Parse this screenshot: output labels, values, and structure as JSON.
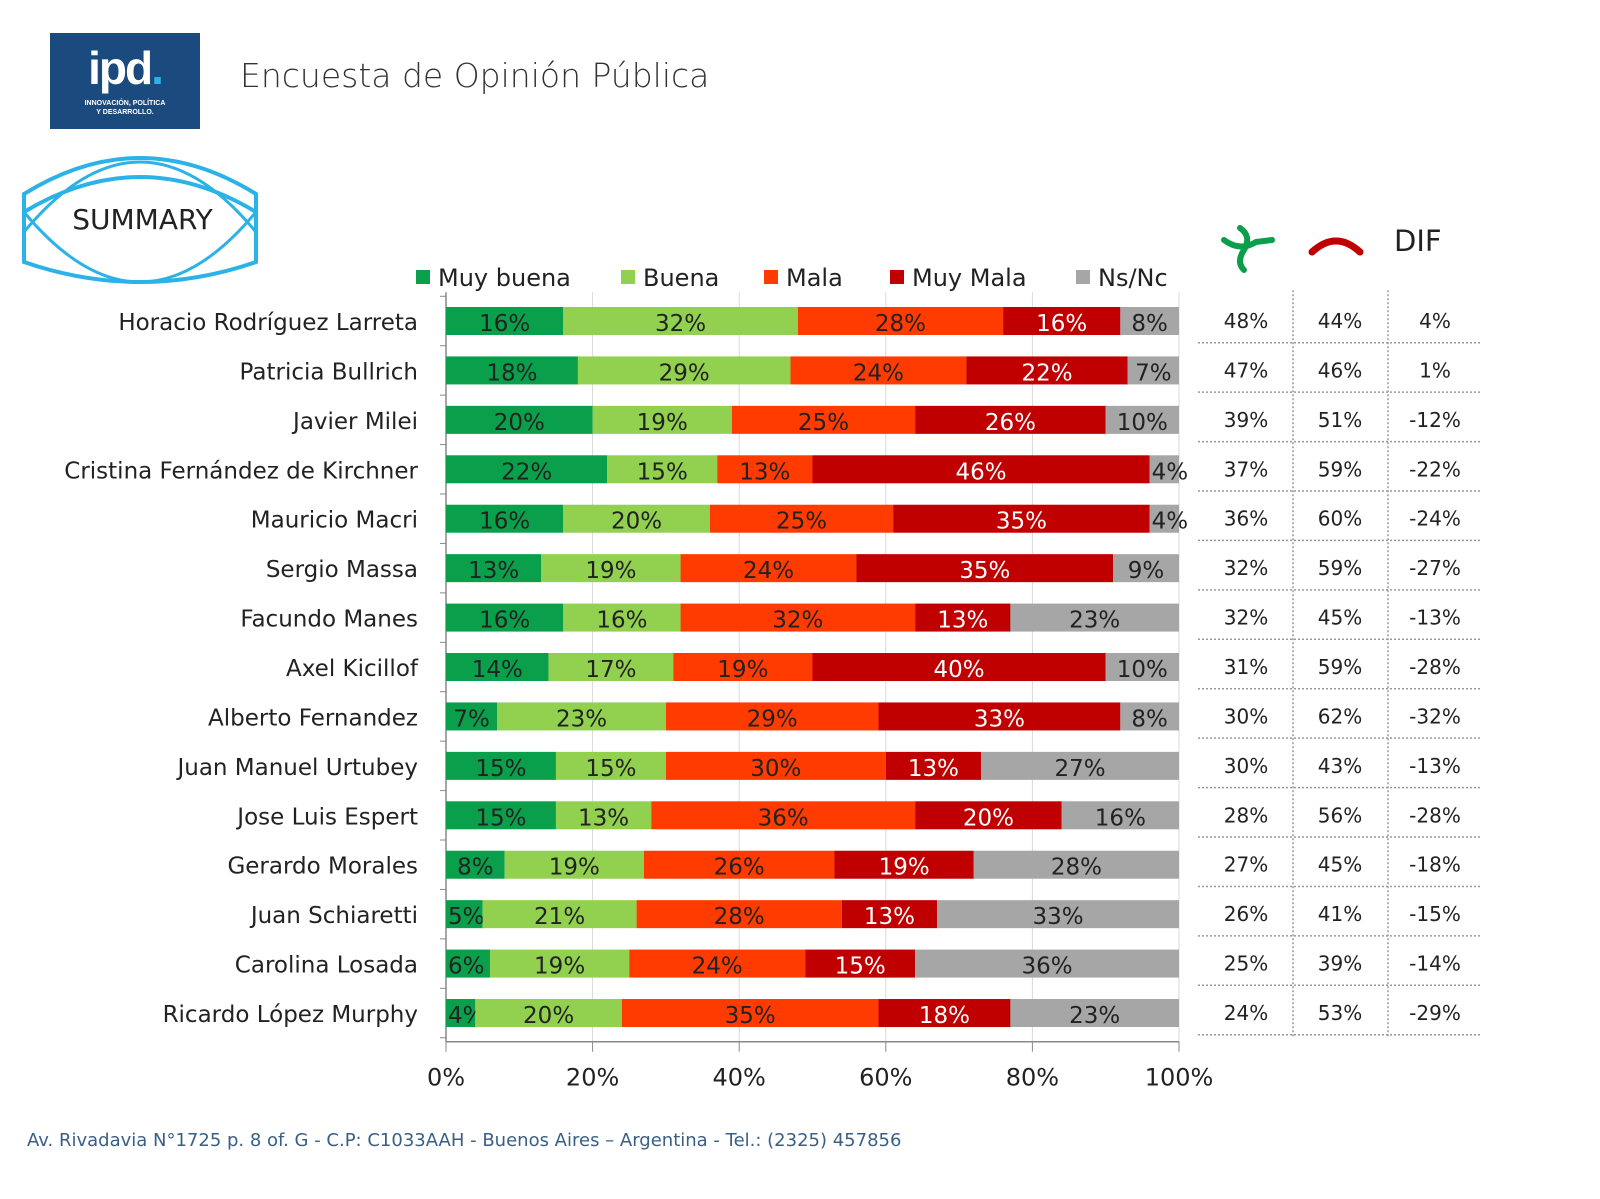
{
  "header": {
    "logo_text": "ipd",
    "logo_tagline_1": "INNOVACIÓN, POLÍTICA",
    "logo_tagline_2": "Y DESARROLLO.",
    "title": "Encuesta de Opinión Pública",
    "badge": "SUMMARY"
  },
  "footer": {
    "address": "Av. Rivadavia N°1725 p. 8 of. G - C.P: C1033AAH - Buenos Aires – Argentina - Tel.: (2325) 457856"
  },
  "colors": {
    "muy_buena": "#0a9f4a",
    "buena": "#92d050",
    "mala": "#ff3b00",
    "muy_mala": "#c00000",
    "ns_nc": "#a6a6a6",
    "brand": "#1b4a7e",
    "accent": "#2bb2e6"
  },
  "table": {
    "icons": [
      "positive-image-icon",
      "negative-image-icon"
    ],
    "dif_label": "DIF",
    "rows": [
      {
        "pos": "48%",
        "neg": "44%",
        "dif": "4%"
      },
      {
        "pos": "47%",
        "neg": "46%",
        "dif": "1%"
      },
      {
        "pos": "39%",
        "neg": "51%",
        "dif": "-12%"
      },
      {
        "pos": "37%",
        "neg": "59%",
        "dif": "-22%"
      },
      {
        "pos": "36%",
        "neg": "60%",
        "dif": "-24%"
      },
      {
        "pos": "32%",
        "neg": "59%",
        "dif": "-27%"
      },
      {
        "pos": "32%",
        "neg": "45%",
        "dif": "-13%"
      },
      {
        "pos": "31%",
        "neg": "59%",
        "dif": "-28%"
      },
      {
        "pos": "30%",
        "neg": "62%",
        "dif": "-32%"
      },
      {
        "pos": "30%",
        "neg": "43%",
        "dif": "-13%"
      },
      {
        "pos": "28%",
        "neg": "56%",
        "dif": "-28%"
      },
      {
        "pos": "27%",
        "neg": "45%",
        "dif": "-18%"
      },
      {
        "pos": "26%",
        "neg": "41%",
        "dif": "-15%"
      },
      {
        "pos": "25%",
        "neg": "39%",
        "dif": "-14%"
      },
      {
        "pos": "24%",
        "neg": "53%",
        "dif": "-29%"
      }
    ]
  },
  "chart_data": {
    "type": "bar",
    "orientation": "horizontal",
    "stacked": true,
    "title": "",
    "xlabel": "",
    "ylabel": "",
    "xlim": [
      0,
      100
    ],
    "x_ticks": [
      "0%",
      "20%",
      "40%",
      "60%",
      "80%",
      "100%"
    ],
    "grid": true,
    "legend_position": "top",
    "categories": [
      "Horacio Rodríguez Larreta",
      "Patricia Bullrich",
      "Javier Milei",
      "Cristina Fernández de Kirchner",
      "Mauricio Macri",
      "Sergio Massa",
      "Facundo Manes",
      "Axel Kicillof",
      "Alberto Fernandez",
      "Juan Manuel Urtubey",
      "Jose Luis Espert",
      "Gerardo Morales",
      "Juan Schiaretti",
      "Carolina Losada",
      "Ricardo López Murphy"
    ],
    "series": [
      {
        "name": "Muy buena",
        "key": "muy_buena",
        "values": [
          16,
          18,
          20,
          22,
          16,
          13,
          16,
          14,
          7,
          15,
          15,
          8,
          5,
          6,
          4
        ]
      },
      {
        "name": "Buena",
        "key": "buena",
        "values": [
          32,
          29,
          19,
          15,
          20,
          19,
          16,
          17,
          23,
          15,
          13,
          19,
          21,
          19,
          20
        ]
      },
      {
        "name": "Mala",
        "key": "mala",
        "values": [
          28,
          24,
          25,
          13,
          25,
          24,
          32,
          19,
          29,
          30,
          36,
          26,
          28,
          24,
          35
        ]
      },
      {
        "name": "Muy Mala",
        "key": "muy_mala",
        "values": [
          16,
          22,
          26,
          46,
          35,
          35,
          13,
          40,
          33,
          13,
          20,
          19,
          13,
          15,
          18
        ]
      },
      {
        "name": "Ns/Nc",
        "key": "ns_nc",
        "values": [
          8,
          7,
          10,
          4,
          4,
          9,
          23,
          10,
          8,
          27,
          16,
          28,
          33,
          36,
          23
        ]
      }
    ]
  }
}
